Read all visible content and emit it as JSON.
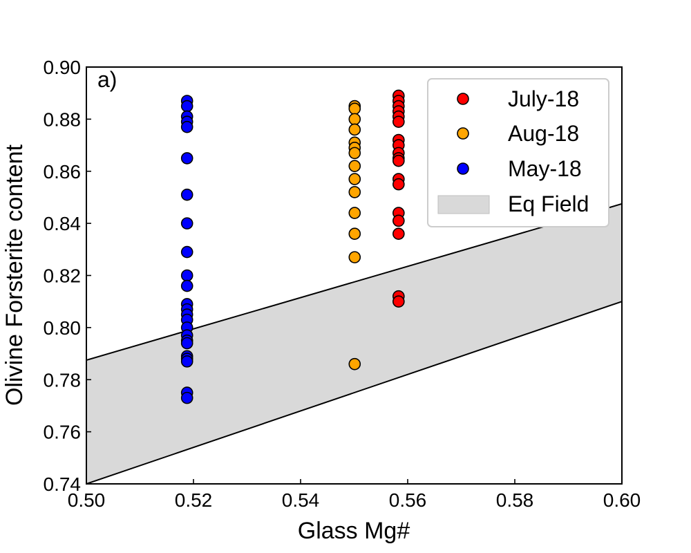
{
  "chart_data": {
    "type": "scatter",
    "panel_label": "a)",
    "xlabel": "Glass Mg#",
    "ylabel": "Olivine Forsterite content",
    "xlim": [
      0.5,
      0.6
    ],
    "ylim": [
      0.74,
      0.9
    ],
    "xticks": [
      "0.50",
      "0.52",
      "0.54",
      "0.56",
      "0.58",
      "0.60"
    ],
    "yticks": [
      "0.74",
      "0.76",
      "0.78",
      "0.80",
      "0.82",
      "0.84",
      "0.86",
      "0.88",
      "0.90"
    ],
    "grid": false,
    "legend_position": "top-right",
    "colors": {
      "july": "#ff0000",
      "aug": "#ffa500",
      "may": "#0000ff",
      "field": "#d9d9d9"
    },
    "eq_field": {
      "name": "Eq Field",
      "upper": [
        [
          0.5,
          0.7875
        ],
        [
          0.6,
          0.8475
        ]
      ],
      "lower": [
        [
          0.5,
          0.74
        ],
        [
          0.6,
          0.81
        ]
      ]
    },
    "series": [
      {
        "name": "July-18",
        "color_key": "july",
        "x": 0.5583,
        "y": [
          0.889,
          0.887,
          0.885,
          0.883,
          0.881,
          0.879,
          0.872,
          0.87,
          0.867,
          0.865,
          0.864,
          0.857,
          0.855,
          0.844,
          0.841,
          0.836,
          0.812,
          0.81
        ]
      },
      {
        "name": "Aug-18",
        "color_key": "aug",
        "x": 0.5501,
        "y": [
          0.885,
          0.884,
          0.88,
          0.876,
          0.871,
          0.869,
          0.867,
          0.862,
          0.857,
          0.852,
          0.844,
          0.836,
          0.827,
          0.786
        ]
      },
      {
        "name": "May-18",
        "color_key": "may",
        "x": 0.5188,
        "y": [
          0.887,
          0.885,
          0.881,
          0.879,
          0.877,
          0.865,
          0.851,
          0.84,
          0.829,
          0.82,
          0.816,
          0.809,
          0.807,
          0.805,
          0.803,
          0.8,
          0.797,
          0.795,
          0.794,
          0.789,
          0.788,
          0.787,
          0.775,
          0.773
        ]
      }
    ],
    "legend_order": [
      "July-18",
      "Aug-18",
      "May-18",
      "Eq Field"
    ]
  }
}
